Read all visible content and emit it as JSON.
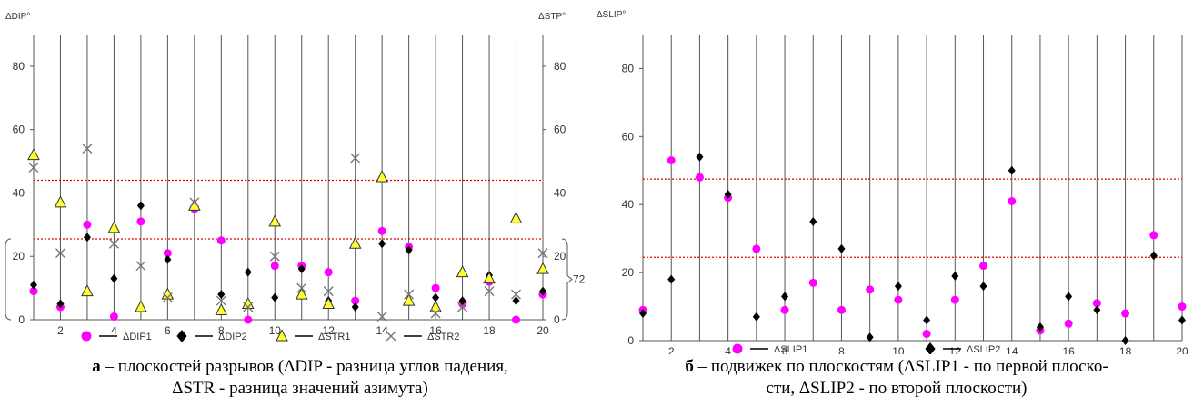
{
  "chart_data": [
    {
      "type": "scatter",
      "ylabel": "ΔDIP°",
      "y2label": "ΔSTP°",
      "xlim": [
        1,
        20
      ],
      "ylim": [
        0,
        90
      ],
      "xticks": [
        "2",
        "4",
        "6",
        "8",
        "10",
        "12",
        "14",
        "16",
        "18",
        "20"
      ],
      "yticks": [
        "0",
        "20",
        "40",
        "60",
        "80"
      ],
      "y2ticks": [
        "0",
        "20",
        "40",
        "60",
        "80"
      ],
      "reference_lines": [
        44,
        25.5
      ],
      "bracket_label": "72",
      "grid": "vertical",
      "legend_position": "bottom",
      "series": [
        {
          "name": "ΔDIP1",
          "marker": "circle",
          "color": "#ff00ff",
          "x": [
            1,
            2,
            3,
            4,
            5,
            6,
            7,
            8,
            9,
            10,
            11,
            12,
            13,
            14,
            15,
            16,
            17,
            18,
            19,
            20
          ],
          "y": [
            9,
            4,
            30,
            1,
            31,
            21,
            35,
            25,
            0,
            17,
            17,
            15,
            6,
            28,
            23,
            10,
            5,
            12,
            0,
            8
          ]
        },
        {
          "name": "ΔDIP2",
          "marker": "diamond",
          "color": "#000000",
          "x": [
            1,
            2,
            3,
            4,
            5,
            6,
            7,
            8,
            9,
            10,
            11,
            12,
            13,
            14,
            15,
            16,
            17,
            18,
            19,
            20
          ],
          "y": [
            11,
            5,
            26,
            13,
            36,
            19,
            36,
            8,
            15,
            7,
            16,
            6,
            4,
            24,
            22,
            7,
            6,
            14,
            6,
            9
          ]
        },
        {
          "name": "ΔSTR1",
          "marker": "triangle",
          "color": "#ffff33",
          "x": [
            1,
            2,
            3,
            4,
            5,
            6,
            7,
            8,
            9,
            10,
            11,
            12,
            13,
            14,
            15,
            16,
            17,
            18,
            19,
            20
          ],
          "y": [
            52,
            37,
            9,
            29,
            4,
            8,
            36,
            3,
            5,
            31,
            8,
            5,
            24,
            45,
            6,
            4,
            15,
            13,
            32,
            16
          ]
        },
        {
          "name": "ΔSTR2",
          "marker": "x",
          "color": "#777777",
          "x": [
            1,
            2,
            3,
            4,
            5,
            6,
            7,
            8,
            9,
            10,
            11,
            12,
            13,
            14,
            15,
            16,
            17,
            18,
            19,
            20
          ],
          "y": [
            48,
            21,
            54,
            24,
            17,
            7,
            37,
            6,
            4,
            20,
            10,
            9,
            51,
            1,
            8,
            2,
            4,
            9,
            8,
            21
          ]
        }
      ]
    },
    {
      "type": "scatter",
      "ylabel": "ΔSLIP°",
      "xlim": [
        1,
        20
      ],
      "ylim": [
        0,
        90
      ],
      "xticks": [
        "2",
        "4",
        "6",
        "8",
        "10",
        "12",
        "14",
        "16",
        "18",
        "20"
      ],
      "yticks": [
        "0",
        "20",
        "40",
        "60",
        "80"
      ],
      "reference_lines": [
        47.5,
        24.5
      ],
      "grid": "vertical",
      "legend_position": "bottom",
      "series": [
        {
          "name": "ΔSLIP1",
          "marker": "circle",
          "color": "#ff00ff",
          "x": [
            1,
            2,
            3,
            4,
            5,
            6,
            7,
            8,
            9,
            10,
            11,
            12,
            13,
            14,
            15,
            16,
            17,
            18,
            19,
            20
          ],
          "y": [
            9,
            53,
            48,
            42,
            27,
            9,
            17,
            9,
            15,
            12,
            2,
            12,
            22,
            41,
            3,
            5,
            11,
            8,
            31,
            10
          ]
        },
        {
          "name": "ΔSLIP2",
          "marker": "diamond",
          "color": "#000000",
          "x": [
            1,
            2,
            3,
            4,
            5,
            6,
            7,
            8,
            9,
            10,
            11,
            12,
            13,
            14,
            15,
            16,
            17,
            18,
            19,
            20
          ],
          "y": [
            8,
            18,
            54,
            43,
            7,
            13,
            35,
            27,
            1,
            16,
            6,
            19,
            16,
            50,
            4,
            13,
            9,
            0,
            25,
            6
          ]
        }
      ]
    }
  ],
  "captions": {
    "a_letter": "а",
    "a_line1": " – плоскостей разрывов (ΔDIP - разница углов падения,",
    "a_line2": "ΔSTR - разница значений азимута)",
    "b_letter": "б",
    "b_line1": " –  подвижек по плоскостям (ΔSLIP1 - по первой плоско-",
    "b_line2": "сти, ΔSLIP2 - по второй плоскости)"
  }
}
